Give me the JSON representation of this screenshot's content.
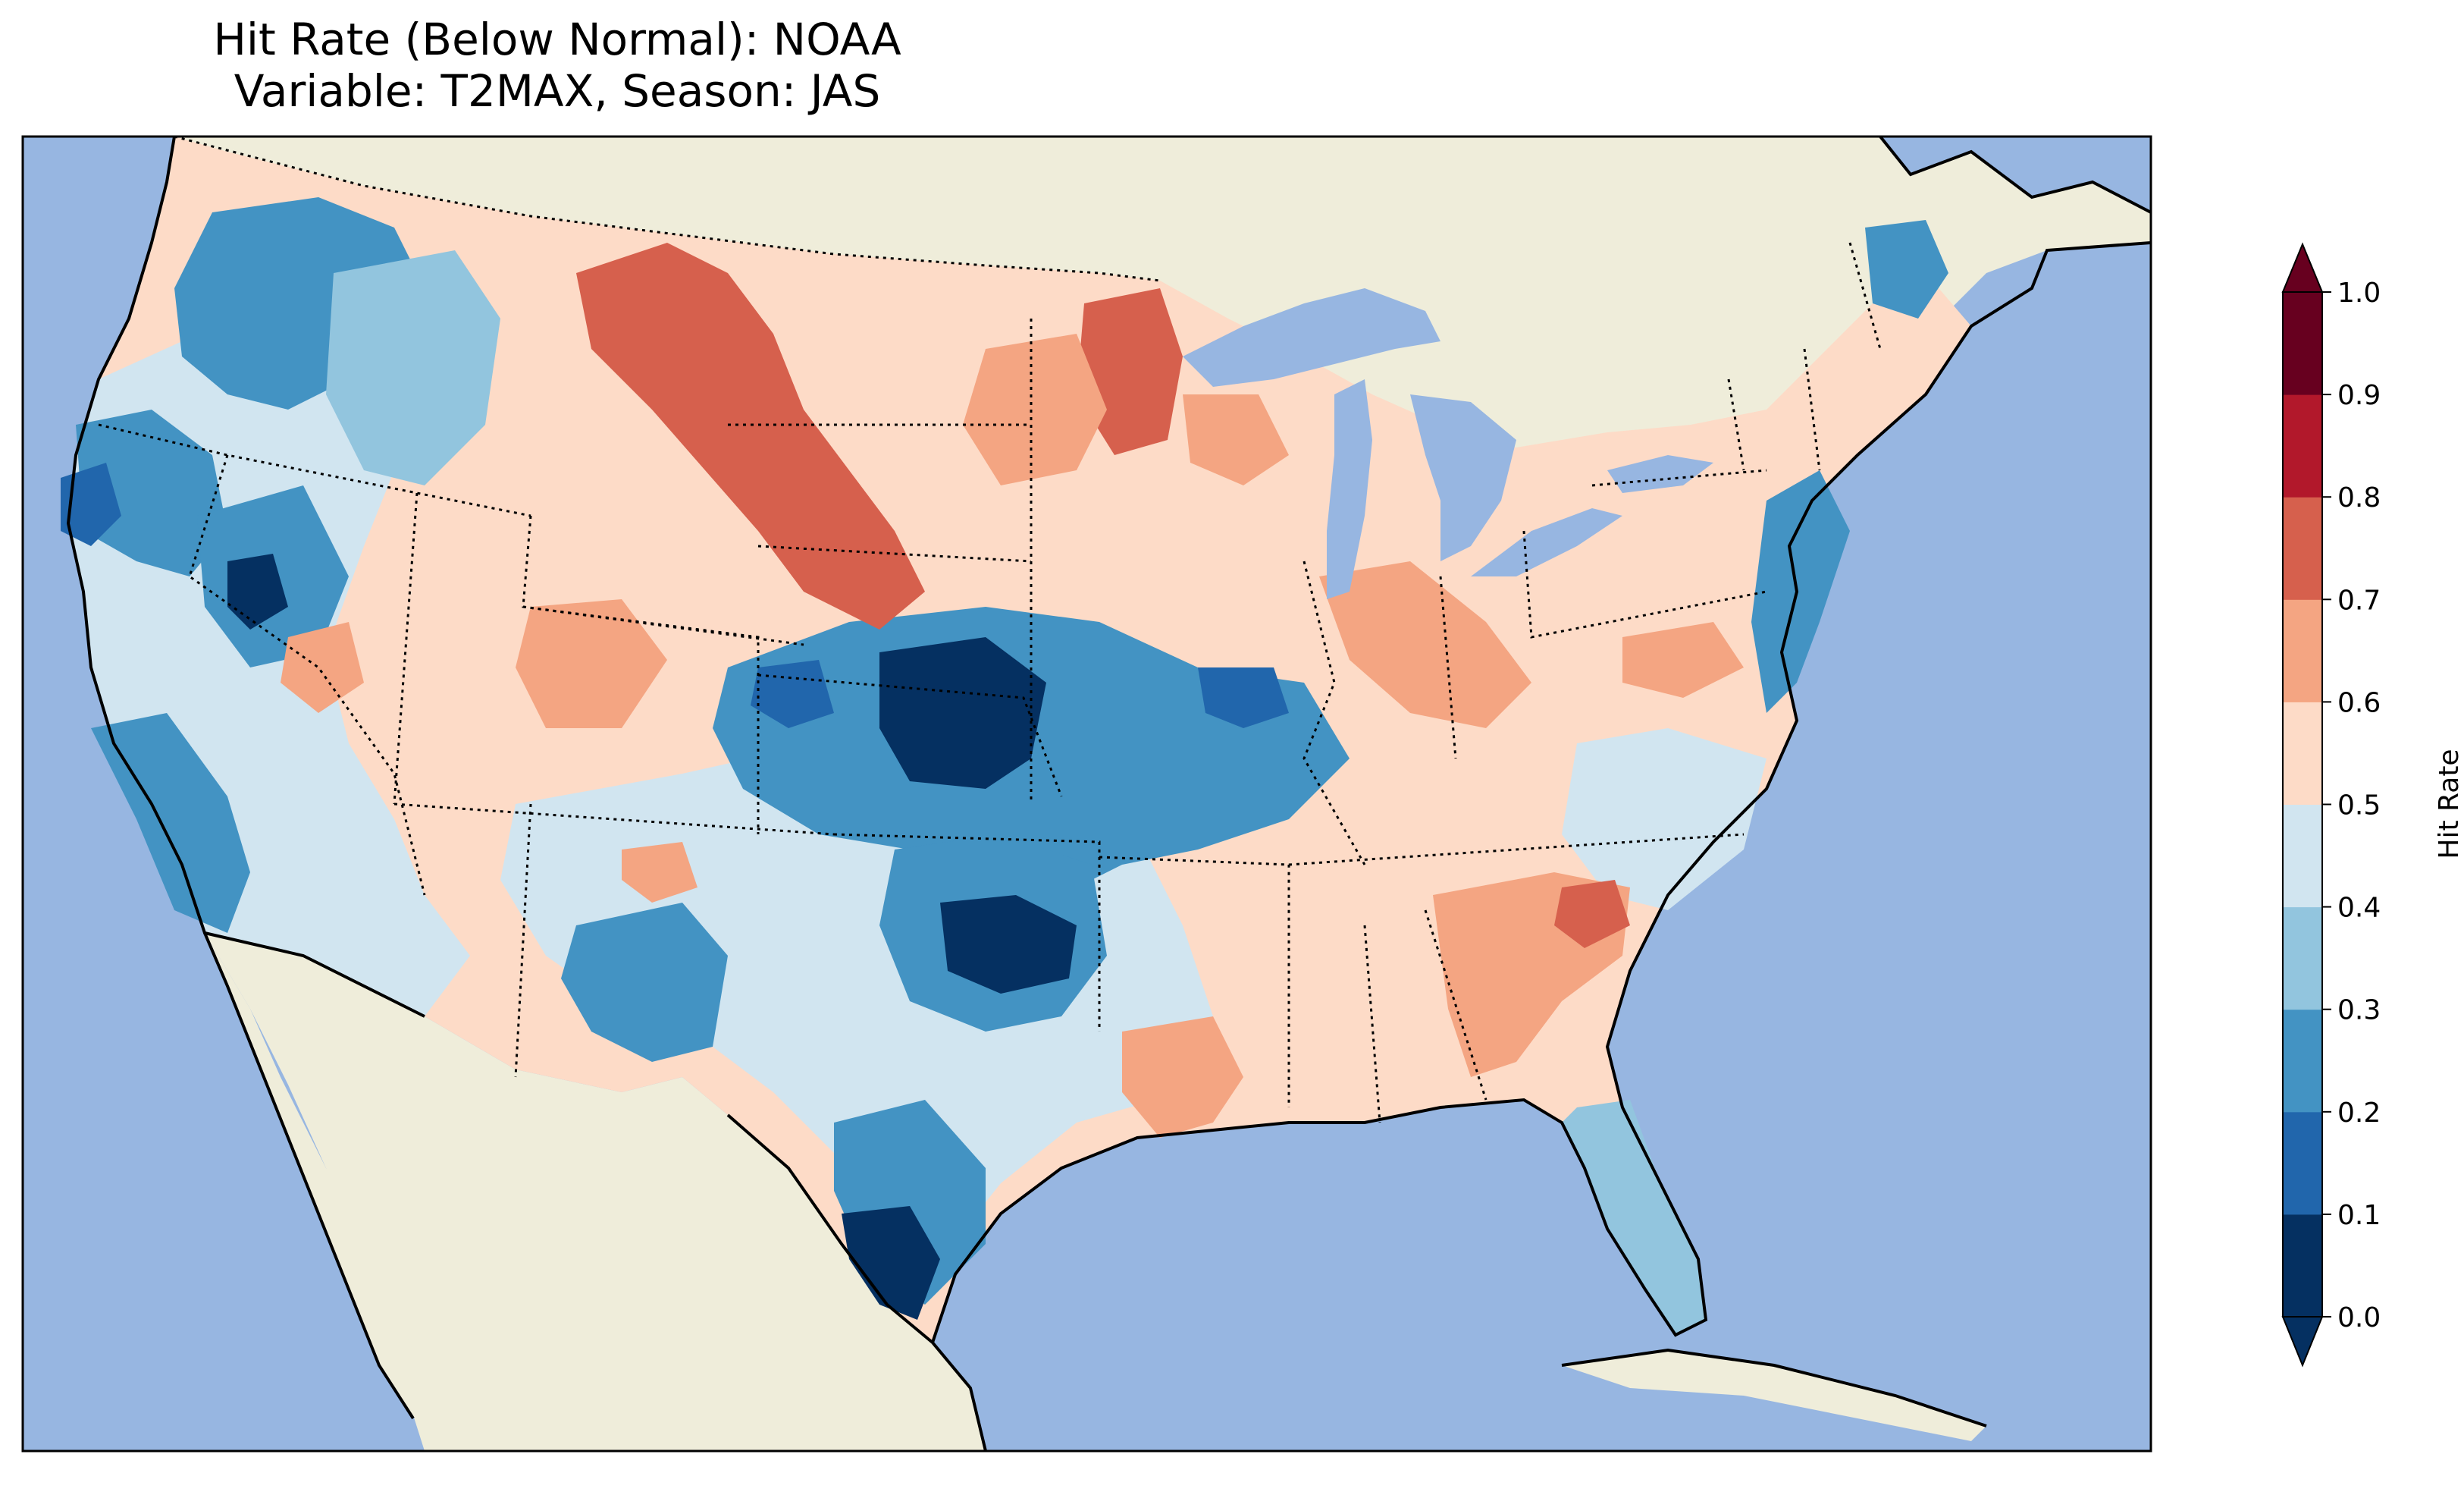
{
  "title": {
    "line1": "Hit Rate (Below Normal): NOAA",
    "line2": "Variable: T2MAX, Season: JAS"
  },
  "colors": {
    "ocean": "#97b6e1",
    "land": "#efedda",
    "border": "#000000"
  },
  "colorbar": {
    "label": "Hit Rate",
    "ticks": [
      "0.0",
      "0.1",
      "0.2",
      "0.3",
      "0.4",
      "0.5",
      "0.6",
      "0.7",
      "0.8",
      "0.9",
      "1.0"
    ],
    "colors": [
      "#053061",
      "#2166ac",
      "#4393c3",
      "#92c5de",
      "#d1e5f0",
      "#fddbc7",
      "#f4a582",
      "#d6604d",
      "#b2182b",
      "#67001f"
    ],
    "extend": "both"
  },
  "regions": [
    {
      "name": "pacific-northwest",
      "color": "#4393c3",
      "level": 0.25
    },
    {
      "name": "oregon-west",
      "color": "#2166ac",
      "level": 0.15
    },
    {
      "name": "nevada-core",
      "color": "#053061",
      "level": 0.05
    },
    {
      "name": "montana-east",
      "color": "#d6604d",
      "level": 0.75
    },
    {
      "name": "dakota-south",
      "color": "#d6604d",
      "level": 0.75
    },
    {
      "name": "minnesota",
      "color": "#d6604d",
      "level": 0.75
    },
    {
      "name": "kansas-nebraska",
      "color": "#053061",
      "level": 0.05
    },
    {
      "name": "oklahoma",
      "color": "#053061",
      "level": 0.05
    },
    {
      "name": "south-texas",
      "color": "#053061",
      "level": 0.05
    },
    {
      "name": "arkansas",
      "color": "#f4a582",
      "level": 0.65
    },
    {
      "name": "georgia",
      "color": "#f4a582",
      "level": 0.65
    },
    {
      "name": "indiana-ohio",
      "color": "#f4a582",
      "level": 0.65
    },
    {
      "name": "east-coast",
      "color": "#4393c3",
      "level": 0.25
    },
    {
      "name": "arizona",
      "color": "#4393c3",
      "level": 0.25
    }
  ]
}
